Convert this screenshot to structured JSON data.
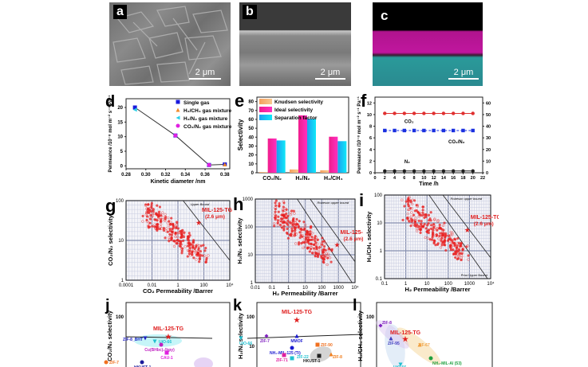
{
  "figure": {
    "panels": {
      "a": {
        "label": "a",
        "type": "SEM top view",
        "scale_bar": "2 μm"
      },
      "b": {
        "label": "b",
        "type": "SEM cross-section",
        "scale_bar": "2 μm"
      },
      "c": {
        "label": "c",
        "type": "EDS mapping cross-section",
        "scale_bar": "2 μm",
        "colors": {
          "top": "#000000",
          "middle": "#c0169e",
          "bottom": "#2a9a9a"
        }
      },
      "d": {
        "label": "d"
      },
      "e": {
        "label": "e"
      },
      "f": {
        "label": "f"
      },
      "g": {
        "label": "g"
      },
      "h": {
        "label": "h"
      },
      "i": {
        "label": "i"
      },
      "j": {
        "label": "j"
      },
      "k": {
        "label": "k"
      },
      "l": {
        "label": "l"
      }
    }
  },
  "chart_data": [
    {
      "id": "d",
      "type": "scatter",
      "xlabel": "Kinetic diameter /nm",
      "ylabel": "Permeance /10⁻⁸ mol m⁻² s⁻¹ Pa⁻¹",
      "xlim": [
        0.28,
        0.385
      ],
      "ylim": [
        -1,
        23
      ],
      "xticks": [
        "0.28",
        "0.30",
        "0.32",
        "0.34",
        "0.36",
        "0.38"
      ],
      "yticks": [
        "0",
        "5",
        "10",
        "15",
        "20"
      ],
      "legend": [
        {
          "name": "Single gas",
          "color": "#1a1adc",
          "marker": "square"
        },
        {
          "name": "H₂/CH₄ gas mixture",
          "color": "#f08a2a",
          "marker": "triangle"
        },
        {
          "name": "H₂/N₂ gas mixture",
          "color": "#2ad0e8",
          "marker": "left-triangle"
        },
        {
          "name": "CO₂/N₂ gas mixture",
          "color": "#e020e0",
          "marker": "circle"
        }
      ],
      "series": [
        {
          "name": "Single gas",
          "points": [
            [
              0.289,
              20.0
            ],
            [
              0.33,
              10.4
            ],
            [
              0.364,
              0.3
            ],
            [
              0.38,
              0.5
            ]
          ]
        },
        {
          "name": "H₂/CH₄ gas mixture",
          "points": [
            [
              0.38,
              0.5
            ]
          ]
        },
        {
          "name": "H₂/N₂ gas mixture",
          "points": [
            [
              0.289,
              19.2
            ]
          ]
        },
        {
          "name": "CO₂/N₂ gas mixture",
          "points": [
            [
              0.33,
              10.4
            ],
            [
              0.364,
              0.3
            ]
          ]
        }
      ]
    },
    {
      "id": "e",
      "type": "bar",
      "ylabel": "Selectivity",
      "ylim": [
        0,
        85
      ],
      "yticks": [
        "0",
        "10",
        "20",
        "30",
        "40",
        "50",
        "60",
        "70",
        "80"
      ],
      "categories": [
        "CO₂/N₂",
        "H₂/N₂",
        "H₂/CH₄"
      ],
      "series": [
        {
          "name": "Knudsen selectivity",
          "values": [
            0.8,
            3.7,
            2.8
          ],
          "color": "#f4a060"
        },
        {
          "name": "Ideal selectivity",
          "values": [
            38.5,
            64.5,
            40.5
          ],
          "color": "#f01c8c"
        },
        {
          "name": "Separation factor",
          "values": [
            36.3,
            60.5,
            35.5
          ],
          "color": "#1aa0f0"
        }
      ]
    },
    {
      "id": "f",
      "type": "line",
      "xlabel": "Time /h",
      "ylabel": "Permeance /10⁻⁸ mol m⁻² s⁻¹ Pa⁻¹",
      "ylabel_right": "Separation factor",
      "xlim": [
        0,
        22
      ],
      "ylim": [
        0,
        13
      ],
      "ylim_right": [
        0,
        65
      ],
      "xticks": [
        "0",
        "2",
        "4",
        "6",
        "8",
        "10",
        "12",
        "14",
        "16",
        "18",
        "20",
        "22"
      ],
      "yticks": [
        "0",
        "2",
        "4",
        "6",
        "8",
        "10",
        "12"
      ],
      "yticks_right": [
        "0",
        "10",
        "20",
        "30",
        "40",
        "50",
        "60"
      ],
      "x": [
        2,
        4,
        6,
        8,
        10,
        12,
        14,
        16,
        18,
        20
      ],
      "series": [
        {
          "name": "CO₂",
          "axis": "left",
          "values": [
            10.2,
            10.2,
            10.2,
            10.2,
            10.2,
            10.2,
            10.2,
            10.2,
            10.2,
            10.2
          ],
          "color": "#e03030",
          "marker": "circle"
        },
        {
          "name": "CO₂/N₂",
          "axis": "right",
          "values": [
            36.3,
            36.3,
            36.3,
            36.3,
            36.3,
            36.3,
            36.3,
            36.3,
            36.3,
            36.3
          ],
          "color": "#1a30e0",
          "marker": "square"
        },
        {
          "name": "N₂",
          "axis": "left",
          "values": [
            0.3,
            0.3,
            0.3,
            0.3,
            0.3,
            0.3,
            0.3,
            0.3,
            0.3,
            0.3
          ],
          "color": "#202020",
          "marker": "circle"
        }
      ],
      "annotations": [
        "CO₂",
        "CO₂/N₂",
        "N₂"
      ]
    },
    {
      "id": "g",
      "type": "scatter",
      "xscale": "log",
      "yscale": "log",
      "xlabel": "CO₂ Permeability /Barrer",
      "ylabel": "CO₂/N₂ selectivity",
      "xticks": [
        "0.0001",
        "0.01",
        "1",
        "100",
        "10⁴"
      ],
      "yticks": [
        "1",
        "10",
        "100"
      ],
      "upper_bound_label": "Upper Bound",
      "highlight": {
        "label": "MIL-125-TG",
        "sublabel": "(2.6 μm)",
        "x": 90,
        "y": 38
      },
      "cloud_color": "#e82020"
    },
    {
      "id": "h",
      "type": "scatter",
      "xscale": "log",
      "yscale": "log",
      "xlabel": "H₂ Permeability /Barrer",
      "ylabel": "H₂/N₂ selectivity",
      "xticks": [
        "0.01",
        "0.1",
        "1",
        "10",
        "100",
        "1000",
        "10⁴"
      ],
      "yticks": [
        "1",
        "10",
        "100",
        "1000"
      ],
      "upper_bound_label": "Robeson upper bound",
      "highlight": {
        "label": "MIL-125-TG",
        "sublabel": "(2.6 μm)",
        "x": 1800,
        "y": 60
      },
      "cloud_color": "#e82020"
    },
    {
      "id": "i",
      "type": "scatter",
      "xscale": "log",
      "yscale": "log",
      "xlabel": "H₂ Permeability /Barrer",
      "ylabel": "H₂/CH₄ selectivity",
      "xticks": [
        "0.1",
        "1",
        "10",
        "100",
        "1000",
        "10⁴"
      ],
      "yticks": [
        "0.1",
        "1",
        "10",
        "100"
      ],
      "upper_bound_label": "Robeson upper bound",
      "lower_bound_label": "Prior Upper Bound",
      "highlight": {
        "label": "MIL-125-TG",
        "sublabel": "(2.6 μm)",
        "x": 1800,
        "y": 40
      },
      "cloud_color": "#e82020"
    },
    {
      "id": "j",
      "type": "scatter",
      "ylabel": "CO₂/N₂ selectivity",
      "yticks": [
        "100"
      ],
      "points": [
        {
          "label": "MIL-125-TG",
          "color": "#e02020",
          "marker": "star"
        },
        {
          "label": "ZIF-8_BHT",
          "color": "#2020c0",
          "marker": "triangle-down"
        },
        {
          "label": "UiO-66",
          "color": "#20c0d0",
          "marker": "triangle-down"
        },
        {
          "label": "Cu(BHbc)₂(bpy)",
          "color": "#c020c0",
          "marker": "circle"
        },
        {
          "label": "CAU-1",
          "color": "#e020e0",
          "marker": "square"
        },
        {
          "label": "ZIF-7",
          "color": "#f07020",
          "marker": "circle"
        },
        {
          "label": "HKUST-1",
          "color": "#1a1a9a",
          "marker": "circle"
        }
      ]
    },
    {
      "id": "k",
      "type": "scatter",
      "ylabel": "H₂/N₂ selectivity",
      "yticks": [
        "10",
        "100"
      ],
      "points": [
        {
          "label": "MIL-125-TG",
          "color": "#e02020",
          "marker": "star"
        },
        {
          "label": "UiO-66",
          "color": "#20c0d0",
          "marker": "triangle-down"
        },
        {
          "label": "ZIF-7",
          "color": "#8020c0",
          "marker": "diamond"
        },
        {
          "label": "ZIF-8",
          "color": "#f08020",
          "marker": "triangle"
        },
        {
          "label": "ZIF-90",
          "color": "#f07020",
          "marker": "square"
        },
        {
          "label": "NH₂-MIL-125 (Ti)",
          "color": "#1a1ad0",
          "marker": "circle"
        },
        {
          "label": "ZIF-22",
          "color": "#20c0d0",
          "marker": "square"
        },
        {
          "label": "ZIF-71",
          "color": "#e020a0",
          "marker": "square"
        },
        {
          "label": "MMOF",
          "color": "#1a1ad0",
          "marker": "triangle"
        },
        {
          "label": "HKUST-1",
          "color": "#202020",
          "marker": "square"
        }
      ]
    },
    {
      "id": "l",
      "type": "scatter",
      "ylabel": "H₂/CH₄ selectivity",
      "yticks": [
        "100"
      ],
      "points": [
        {
          "label": "MIL-125-TG",
          "color": "#e02020",
          "marker": "star"
        },
        {
          "label": "ZIF-8",
          "color": "#8020c0",
          "marker": "diamond"
        },
        {
          "label": "ZIF-95",
          "color": "#4040c0",
          "marker": "triangle"
        },
        {
          "label": "ZIF-67",
          "color": "#f0a040",
          "marker": "triangle"
        },
        {
          "label": "UiO-66",
          "color": "#20c0d0",
          "marker": "triangle-down"
        },
        {
          "label": "NH₂-MIL-Al (53)",
          "color": "#20a040",
          "marker": "circle"
        }
      ]
    }
  ]
}
